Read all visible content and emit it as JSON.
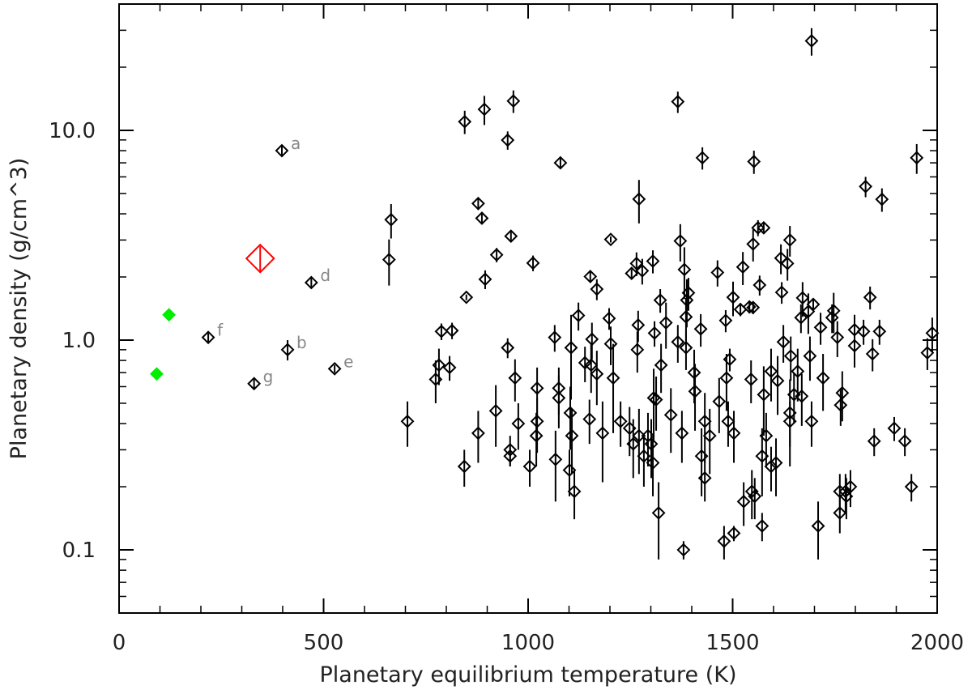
{
  "chart_data": {
    "type": "scatter",
    "xlabel": "Planetary equilibrium temperature (K)",
    "ylabel": "Planetary density (g/cm^3)",
    "xlim": [
      0,
      2000
    ],
    "ylim": [
      0.05,
      40
    ],
    "ylog": true,
    "grid": false,
    "xticks": [
      0,
      500,
      1000,
      1500,
      2000
    ],
    "xminorticks": [
      100,
      200,
      300,
      400,
      600,
      700,
      800,
      900,
      1100,
      1200,
      1300,
      1400,
      1600,
      1700,
      1800,
      1900
    ],
    "yticks": [
      0.1,
      {
        "value": 1,
        "label": "1.0"
      },
      {
        "value": 10,
        "label": "10.0"
      }
    ],
    "yminorticks": [
      0.06,
      0.07,
      0.08,
      0.09,
      0.2,
      0.3,
      0.4,
      0.5,
      0.6,
      0.7,
      0.8,
      0.9,
      2,
      3,
      4,
      5,
      6,
      7,
      8,
      9,
      20,
      30,
      40
    ],
    "series": [
      {
        "color": "#000000",
        "marker": "diamond",
        "filled": false,
        "x": [
          1693,
          964,
          893,
          845,
          1366,
          950,
          1079,
          1426,
          1552,
          1950,
          1825,
          1865,
          1271,
          878,
          887,
          665,
          1562,
          1576,
          958,
          1202,
          1372,
          1640,
          1550,
          923,
          660,
          1012,
          1265,
          1305,
          1279,
          1382,
          1618,
          1525,
          1634,
          1463,
          1253,
          1152,
          895,
          1168,
          1392,
          1388,
          1620,
          1566,
          1671,
          849,
          1323,
          1386,
          1519,
          1541,
          1550,
          1501,
          1836,
          1697,
          1483,
          1667,
          1685,
          1743,
          1747,
          1198,
          1123,
          1337,
          1269,
          814,
          788,
          1715,
          1798,
          1820,
          1859,
          1988,
          1202,
          1366,
          1309,
          1422,
          1065,
          1156,
          1105,
          950,
          1386,
          1624,
          1756,
          1798,
          1842,
          1976,
          1642,
          1689,
          1493,
          1267,
          782,
          808,
          1139,
          1154,
          1325,
          1406,
          1168,
          968,
          1208,
          1594,
          1610,
          1545,
          1659,
          1721,
          774,
          1485,
          1022,
          1075,
          1408,
          1768,
          1307,
          1075,
          1467,
          1669,
          921,
          1103,
          1313,
          1576,
          1650,
          1764,
          1349,
          1432,
          1640,
          1640,
          1693,
          705,
          976,
          1022,
          1150,
          1226,
          1489,
          878,
          1182,
          1020,
          1107,
          1248,
          1271,
          1376,
          1444,
          1582,
          1895,
          1921,
          1257,
          1293,
          1301,
          1503,
          1846,
          956,
          956,
          1283,
          1305,
          1424,
          1572,
          1067,
          844,
          1004,
          1594,
          1606,
          1101,
          1432,
          1937,
          1113,
          1527,
          1547,
          1554,
          1762,
          1776,
          1788,
          1778,
          1762,
          1319,
          1709,
          1572,
          1479,
          1503,
          1380
        ],
        "values": [
          26.7,
          13.8,
          12.6,
          11.0,
          13.7,
          8.98,
          7.0,
          7.4,
          7.1,
          7.4,
          5.4,
          4.69,
          4.7,
          4.48,
          3.81,
          3.75,
          3.43,
          3.43,
          3.13,
          3.02,
          2.97,
          3.0,
          2.87,
          2.55,
          2.42,
          2.33,
          2.32,
          2.38,
          2.14,
          2.17,
          2.46,
          2.23,
          2.32,
          2.1,
          2.08,
          2.01,
          1.95,
          1.75,
          1.68,
          1.55,
          1.69,
          1.83,
          1.59,
          1.6,
          1.55,
          1.29,
          1.4,
          1.44,
          1.43,
          1.6,
          1.6,
          1.48,
          1.24,
          1.28,
          1.37,
          1.28,
          1.38,
          1.27,
          1.31,
          1.21,
          1.18,
          1.11,
          1.1,
          1.15,
          1.12,
          1.1,
          1.1,
          1.08,
          0.96,
          0.98,
          1.08,
          1.13,
          1.03,
          1.01,
          0.92,
          0.92,
          0.92,
          0.98,
          1.03,
          0.94,
          0.86,
          0.87,
          0.84,
          0.84,
          0.81,
          0.9,
          0.76,
          0.74,
          0.78,
          0.76,
          0.76,
          0.7,
          0.69,
          0.66,
          0.66,
          0.71,
          0.64,
          0.65,
          0.71,
          0.66,
          0.65,
          0.66,
          0.59,
          0.59,
          0.57,
          0.56,
          0.53,
          0.53,
          0.51,
          0.54,
          0.46,
          0.45,
          0.52,
          0.55,
          0.55,
          0.49,
          0.44,
          0.41,
          0.45,
          0.41,
          0.41,
          0.41,
          0.4,
          0.41,
          0.42,
          0.41,
          0.41,
          0.36,
          0.36,
          0.35,
          0.35,
          0.38,
          0.35,
          0.36,
          0.35,
          0.35,
          0.38,
          0.33,
          0.32,
          0.35,
          0.32,
          0.36,
          0.33,
          0.3,
          0.28,
          0.28,
          0.26,
          0.28,
          0.28,
          0.27,
          0.25,
          0.25,
          0.25,
          0.26,
          0.24,
          0.22,
          0.2,
          0.19,
          0.17,
          0.19,
          0.18,
          0.19,
          0.19,
          0.2,
          0.18,
          0.15,
          0.15,
          0.13,
          0.13,
          0.11,
          0.12,
          0.1
        ],
        "errors": [
          4.0,
          1.7,
          2.0,
          1.4,
          1.6,
          0.9,
          0.4,
          0.9,
          0.9,
          1.2,
          0.6,
          0.6,
          1.1,
          0.3,
          0.2,
          0.7,
          0.3,
          0.2,
          0.2,
          0.1,
          0.6,
          0.5,
          0.5,
          0.2,
          0.6,
          0.2,
          0.3,
          0.3,
          0.3,
          0.6,
          0.4,
          0.4,
          0.4,
          0.3,
          0.1,
          0.1,
          0.2,
          0.2,
          0.3,
          0.4,
          0.2,
          0.2,
          0.3,
          0.05,
          0.2,
          0.3,
          0.1,
          0.1,
          0.1,
          0.3,
          0.2,
          0.1,
          0.15,
          0.2,
          0.3,
          0.2,
          0.3,
          0.15,
          0.2,
          0.3,
          0.2,
          0.1,
          0.1,
          0.2,
          0.2,
          0.15,
          0.15,
          0.2,
          0.2,
          0.2,
          0.15,
          0.2,
          0.15,
          0.2,
          0.4,
          0.1,
          0.2,
          0.2,
          0.2,
          0.2,
          0.15,
          0.15,
          0.2,
          0.2,
          0.1,
          0.2,
          0.15,
          0.1,
          0.15,
          0.2,
          0.2,
          0.2,
          0.2,
          0.15,
          0.3,
          0.2,
          0.2,
          0.15,
          0.2,
          0.2,
          0.15,
          0.2,
          0.15,
          0.15,
          0.2,
          0.15,
          0.2,
          0.15,
          0.15,
          0.15,
          0.15,
          0.15,
          0.15,
          0.2,
          0.15,
          0.1,
          0.15,
          0.15,
          0.2,
          0.1,
          0.1,
          0.1,
          0.1,
          0.12,
          0.1,
          0.1,
          0.1,
          0.1,
          0.15,
          0.1,
          0.12,
          0.1,
          0.12,
          0.1,
          0.12,
          0.1,
          0.05,
          0.05,
          0.1,
          0.1,
          0.1,
          0.1,
          0.05,
          0.05,
          0.03,
          0.08,
          0.08,
          0.1,
          0.1,
          0.1,
          0.05,
          0.05,
          0.06,
          0.08,
          0.06,
          0.05,
          0.03,
          0.05,
          0.04,
          0.05,
          0.04,
          0.04,
          0.04,
          0.04,
          0.04,
          0.03,
          0.06,
          0.04,
          0.02,
          0.02,
          0.01,
          0.01
        ]
      },
      {
        "color": "#000000",
        "label_color": "#888888",
        "marker": "diamond",
        "filled": false,
        "x": [
          398,
          412,
          470,
          527,
          218,
          330
        ],
        "values": [
          8.0,
          0.9,
          1.88,
          0.73,
          1.03,
          0.62
        ],
        "errors": [
          0.5,
          0.1,
          0.1,
          0.03,
          0.05,
          0.03
        ],
        "labels": [
          "a",
          "b",
          "d",
          "e",
          "f",
          "g"
        ]
      },
      {
        "color": "#00ee00",
        "marker": "diamond",
        "filled": true,
        "x": [
          92,
          122
        ],
        "values": [
          0.69,
          1.32
        ]
      },
      {
        "color": "#ff0000",
        "marker": "diamond",
        "filled": false,
        "marker_size": "large",
        "x": [
          345
        ],
        "values": [
          2.45
        ],
        "errors": [
          0.35
        ]
      }
    ]
  }
}
